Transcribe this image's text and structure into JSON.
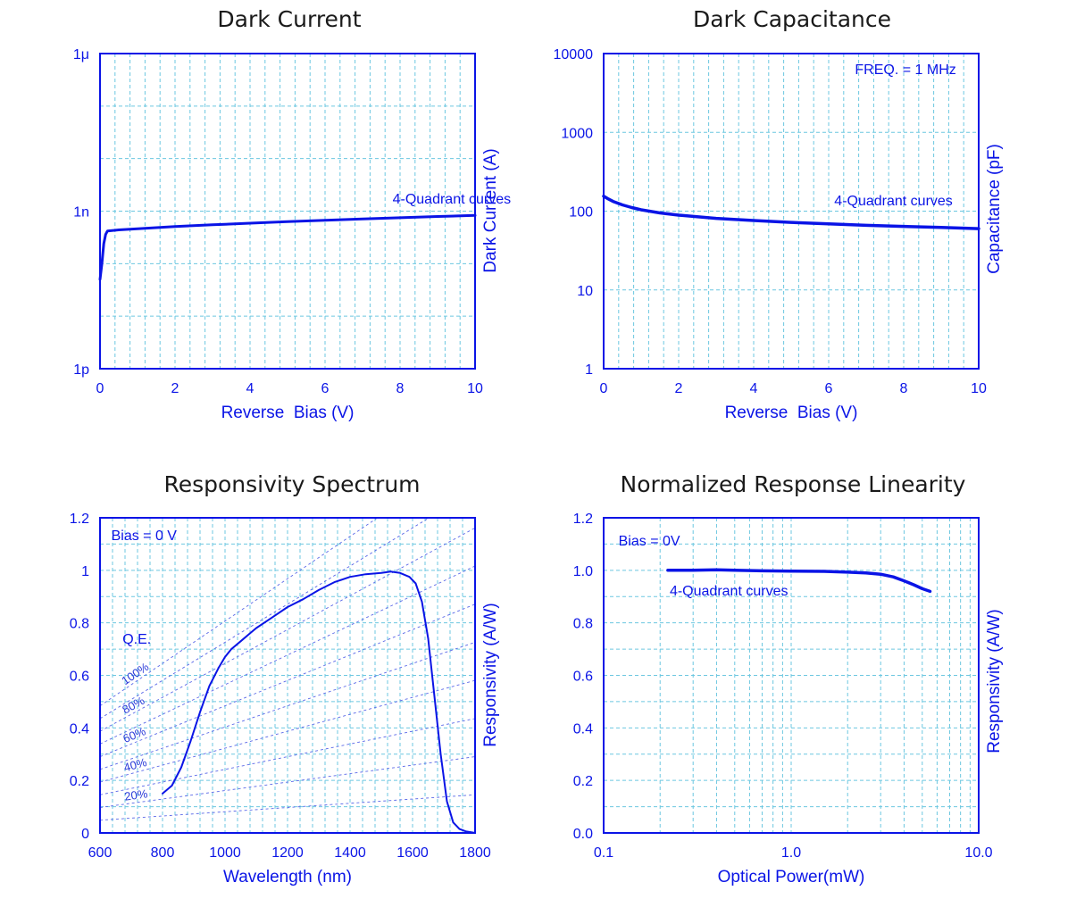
{
  "chart_data": [
    {
      "id": "dark-current",
      "type": "line",
      "title": "Dark Current",
      "xlabel": "Reverse  Bias (V)",
      "ylabel": "Dark Current (A)",
      "xscale": "linear",
      "yscale": "log",
      "xlim": [
        0,
        10
      ],
      "ylim": [
        1e-12,
        1e-06
      ],
      "xticks": [
        0,
        2,
        4,
        6,
        8,
        10
      ],
      "xtick_labels": [
        "0",
        "2",
        "4",
        "6",
        "8",
        "10"
      ],
      "yticks": [
        1e-12,
        1e-09,
        1e-06
      ],
      "ytick_labels": [
        "1p",
        "1n",
        "1μ"
      ],
      "grid": true,
      "annotations": [
        {
          "text": "4-Quadrant curves",
          "x": 7.8,
          "y": 1.4e-09
        }
      ],
      "series": [
        {
          "x": [
            0,
            0.05,
            0.1,
            0.15,
            0.2,
            0.5,
            1,
            2,
            3,
            4,
            5,
            6,
            7,
            8,
            9,
            10
          ],
          "y": [
            5e-11,
            1e-10,
            2.4e-10,
            3.6e-10,
            4.2e-10,
            4.4e-10,
            4.6e-10,
            5.1e-10,
            5.5e-10,
            5.9e-10,
            6.3e-10,
            6.7e-10,
            7.1e-10,
            7.5e-10,
            7.9e-10,
            8.3e-10
          ]
        }
      ]
    },
    {
      "id": "dark-capacitance",
      "type": "line",
      "title": "Dark Capacitance",
      "xlabel": "Reverse  Bias (V)",
      "ylabel": "Capacitance (pF)",
      "xscale": "linear",
      "yscale": "log",
      "xlim": [
        0,
        10
      ],
      "ylim": [
        1,
        10000
      ],
      "xticks": [
        0,
        2,
        4,
        6,
        8,
        10
      ],
      "xtick_labels": [
        "0",
        "2",
        "4",
        "6",
        "8",
        "10"
      ],
      "yticks": [
        1,
        10,
        100,
        1000,
        10000
      ],
      "ytick_labels": [
        "1",
        "10",
        "100",
        "1000",
        "10000"
      ],
      "grid": true,
      "annotations": [
        {
          "text": "FREQ. = 1 MHz",
          "x": 6.7,
          "y": 5500
        },
        {
          "text": "4-Quadrant curves",
          "x": 6.15,
          "y": 118
        }
      ],
      "series": [
        {
          "x": [
            0,
            0.1,
            0.25,
            0.5,
            0.75,
            1,
            1.5,
            2,
            3,
            4,
            5,
            6,
            7,
            8,
            9,
            10
          ],
          "y": [
            155,
            145,
            133,
            120,
            111,
            104,
            95,
            89,
            81,
            76,
            72,
            69,
            66,
            64,
            62,
            60
          ]
        }
      ]
    },
    {
      "id": "responsivity-spectrum",
      "type": "line",
      "title": "Responsivity Spectrum",
      "xlabel": "Wavelength (nm)",
      "ylabel": "Responsivity (A/W)",
      "xscale": "linear",
      "yscale": "linear",
      "xlim": [
        600,
        1800
      ],
      "ylim": [
        0,
        1.2
      ],
      "xticks": [
        600,
        800,
        1000,
        1200,
        1400,
        1600,
        1800
      ],
      "xtick_labels": [
        "600",
        "800",
        "1000",
        "1200",
        "1400",
        "1600",
        "1800"
      ],
      "yticks": [
        0,
        0.2,
        0.4,
        0.6,
        0.8,
        1,
        1.2
      ],
      "ytick_labels": [
        "0",
        "0.2",
        "0.4",
        "0.6",
        "0.8",
        "1",
        "1.2"
      ],
      "grid": true,
      "annotations": [
        {
          "text": "Bias = 0 V",
          "x": 636,
          "y": 1.115
        },
        {
          "text": "Q.E.",
          "x": 672,
          "y": 0.72
        }
      ],
      "qe_lines": {
        "percents": [
          10,
          20,
          30,
          40,
          50,
          60,
          70,
          80,
          90,
          100
        ],
        "labels": [
          {
            "text": "20%",
            "pct": 20,
            "x": 680
          },
          {
            "text": "40%",
            "pct": 40,
            "x": 680
          },
          {
            "text": "60%",
            "pct": 60,
            "x": 680
          },
          {
            "text": "80%",
            "pct": 80,
            "x": 680
          },
          {
            "text": "100%",
            "pct": 100,
            "x": 680
          }
        ]
      },
      "series": [
        {
          "x": [
            800,
            830,
            860,
            890,
            920,
            950,
            980,
            1000,
            1020,
            1050,
            1080,
            1100,
            1150,
            1200,
            1250,
            1300,
            1350,
            1400,
            1450,
            1500,
            1530,
            1560,
            1590,
            1610,
            1630,
            1650,
            1670,
            1690,
            1710,
            1730,
            1750,
            1770,
            1790,
            1800
          ],
          "y": [
            0.15,
            0.18,
            0.25,
            0.35,
            0.46,
            0.56,
            0.63,
            0.67,
            0.7,
            0.73,
            0.76,
            0.78,
            0.82,
            0.86,
            0.89,
            0.925,
            0.955,
            0.975,
            0.985,
            0.99,
            0.995,
            0.99,
            0.975,
            0.95,
            0.88,
            0.74,
            0.52,
            0.3,
            0.12,
            0.04,
            0.015,
            0.006,
            0.002,
            0.0
          ]
        }
      ]
    },
    {
      "id": "response-linearity",
      "type": "line",
      "title": "Normalized Response Linearity",
      "xlabel": "Optical Power(mW)",
      "ylabel": "Responsivity (A/W)",
      "xscale": "log",
      "yscale": "linear",
      "xlim": [
        0.1,
        10
      ],
      "ylim": [
        0,
        1.2
      ],
      "xticks": [
        0.1,
        1,
        10
      ],
      "xtick_labels": [
        "0.1",
        "1.0",
        "10.0"
      ],
      "yticks": [
        0,
        0.2,
        0.4,
        0.6,
        0.8,
        1,
        1.2
      ],
      "ytick_labels": [
        "0.0",
        "0.2",
        "0.4",
        "0.6",
        "0.8",
        "1.0",
        "1.2"
      ],
      "grid": true,
      "annotations": [
        {
          "text": "Bias = 0V",
          "x": 0.12,
          "y": 1.095
        },
        {
          "text": "4-Quadrant curves",
          "x": 0.225,
          "y": 0.905
        }
      ],
      "series": [
        {
          "x": [
            0.22,
            0.3,
            0.4,
            0.5,
            0.7,
            1.0,
            1.5,
            2.0,
            2.5,
            3.0,
            3.5,
            4.0,
            4.5,
            5.0,
            5.5
          ],
          "y": [
            1.0,
            1.0,
            1.002,
            1.0,
            0.998,
            0.997,
            0.996,
            0.993,
            0.99,
            0.985,
            0.975,
            0.96,
            0.945,
            0.93,
            0.92
          ]
        }
      ]
    }
  ]
}
